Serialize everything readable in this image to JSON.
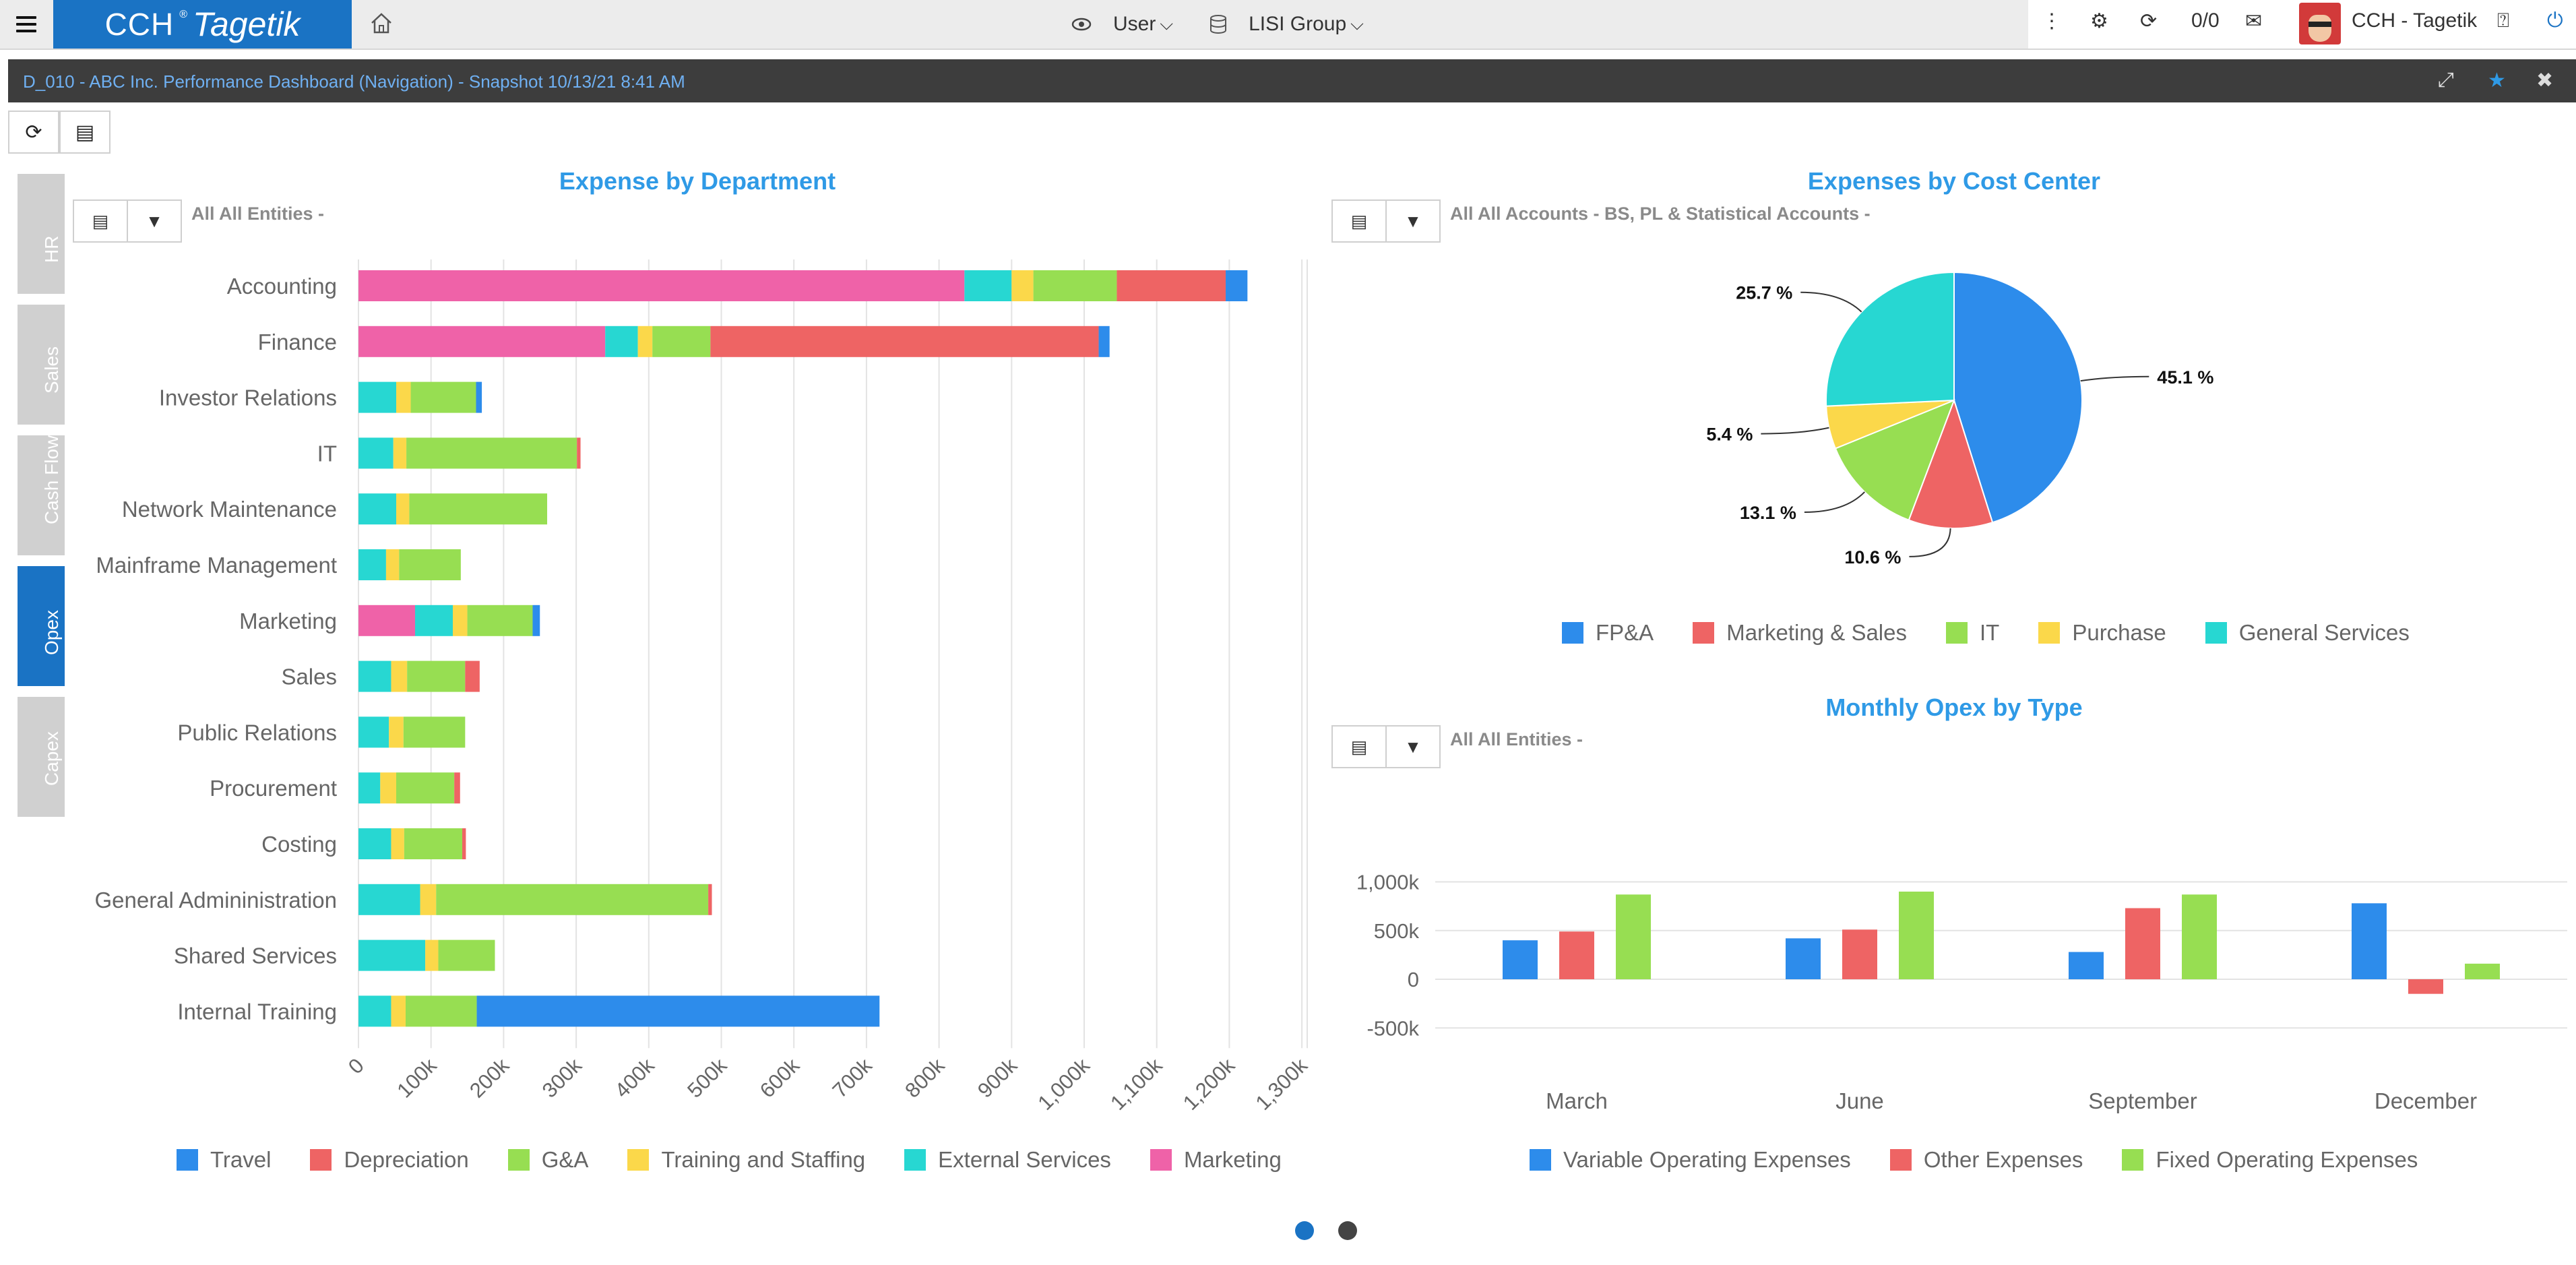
{
  "topbar": {
    "product_brand": "CCH",
    "product_name": "Tagetik",
    "user_label": "User",
    "entity_label": "LISI Group",
    "counter": "0/0",
    "user_name": "CCH - Tagetik"
  },
  "dashboard": {
    "title": "D_010 - ABC Inc. Performance Dashboard (Navigation) - Snapshot 10/13/21 8:41 AM"
  },
  "nav_tabs": [
    {
      "label": "HR",
      "active": false
    },
    {
      "label": "Sales",
      "active": false
    },
    {
      "label": "Cash Flow",
      "active": false
    },
    {
      "label": "Opex",
      "active": true
    },
    {
      "label": "Capex",
      "active": false
    }
  ],
  "colors": {
    "travel": "#2d8ceb",
    "depreciation": "#ee6464",
    "ga": "#97de52",
    "training": "#fbd84a",
    "external": "#27d7d2",
    "marketing": "#ef62a8",
    "accent": "#1a73c4",
    "title": "#2f9ae6"
  },
  "widgets": {
    "expense_dept": {
      "title": "Expense by Department",
      "filter": "All All Entities -"
    },
    "cost_center": {
      "title": "Expenses by Cost Center",
      "filter": "All All Accounts - BS, PL & Statistical Accounts -"
    },
    "monthly_opex": {
      "title": "Monthly Opex by Type",
      "filter": "All All Entities -"
    }
  },
  "chart_data": [
    {
      "type": "bar",
      "orientation": "horizontal",
      "stacked": true,
      "title": "Expense by Department",
      "categories": [
        "Accounting",
        "Finance",
        "Investor Relations",
        "IT",
        "Network Maintenance",
        "Mainframe Management",
        "Marketing",
        "Sales",
        "Public Relations",
        "Procurement",
        "Costing",
        "General Admininistration",
        "Shared Services",
        "Internal Training"
      ],
      "series": [
        {
          "name": "Marketing",
          "color": "#ef62a8",
          "values": [
            835,
            340,
            0,
            0,
            0,
            0,
            78,
            0,
            0,
            0,
            0,
            0,
            0,
            0
          ]
        },
        {
          "name": "External Services",
          "color": "#27d7d2",
          "values": [
            65,
            45,
            52,
            48,
            52,
            38,
            52,
            45,
            42,
            30,
            45,
            85,
            92,
            45
          ]
        },
        {
          "name": "Training and Staffing",
          "color": "#fbd84a",
          "values": [
            30,
            20,
            20,
            18,
            18,
            18,
            20,
            22,
            20,
            22,
            18,
            22,
            18,
            20
          ]
        },
        {
          "name": "G&A",
          "color": "#97de52",
          "values": [
            115,
            80,
            90,
            235,
            190,
            85,
            90,
            80,
            85,
            80,
            80,
            375,
            78,
            98
          ]
        },
        {
          "name": "Depreciation",
          "color": "#ee6464",
          "values": [
            150,
            535,
            0,
            5,
            0,
            0,
            0,
            20,
            0,
            8,
            5,
            5,
            0,
            0
          ]
        },
        {
          "name": "Travel",
          "color": "#2d8ceb",
          "values": [
            30,
            15,
            8,
            0,
            0,
            0,
            10,
            0,
            0,
            0,
            0,
            0,
            0,
            555
          ]
        }
      ],
      "xticks": [
        "0",
        "100k",
        "200k",
        "300k",
        "400k",
        "500k",
        "600k",
        "700k",
        "800k",
        "900k",
        "1,000k",
        "1,100k",
        "1,200k",
        "1,300k"
      ],
      "xlim": [
        0,
        1300
      ],
      "grid": true,
      "legend": [
        "Travel",
        "Depreciation",
        "G&A",
        "Training and Staffing",
        "External Services",
        "Marketing"
      ],
      "legend_position": "bottom"
    },
    {
      "type": "pie",
      "title": "Expenses by Cost Center",
      "slices": [
        {
          "name": "FP&A",
          "value": 45.1,
          "label": "45.1 %",
          "color": "#2d8ceb"
        },
        {
          "name": "Marketing & Sales",
          "value": 10.6,
          "label": "10.6 %",
          "color": "#ee6464"
        },
        {
          "name": "IT",
          "value": 13.1,
          "label": "13.1 %",
          "color": "#97de52"
        },
        {
          "name": "Purchase",
          "value": 5.4,
          "label": "5.4 %",
          "color": "#fbd84a"
        },
        {
          "name": "General Services",
          "value": 25.7,
          "label": "25.7 %",
          "color": "#27d7d2"
        }
      ],
      "legend_position": "bottom"
    },
    {
      "type": "bar",
      "title": "Monthly Opex by Type",
      "categories": [
        "March",
        "June",
        "September",
        "December"
      ],
      "series": [
        {
          "name": "Variable Operating Expenses",
          "color": "#2d8ceb",
          "values": [
            400,
            420,
            280,
            780
          ]
        },
        {
          "name": "Other Expenses",
          "color": "#ee6464",
          "values": [
            490,
            510,
            730,
            -150
          ]
        },
        {
          "name": "Fixed Operating Expenses",
          "color": "#97de52",
          "values": [
            870,
            900,
            870,
            160
          ]
        }
      ],
      "yticks": [
        "1,000k",
        "500k",
        "0",
        "-500k"
      ],
      "ylim": [
        -500,
        1000
      ],
      "grid": true,
      "legend_position": "bottom"
    }
  ]
}
